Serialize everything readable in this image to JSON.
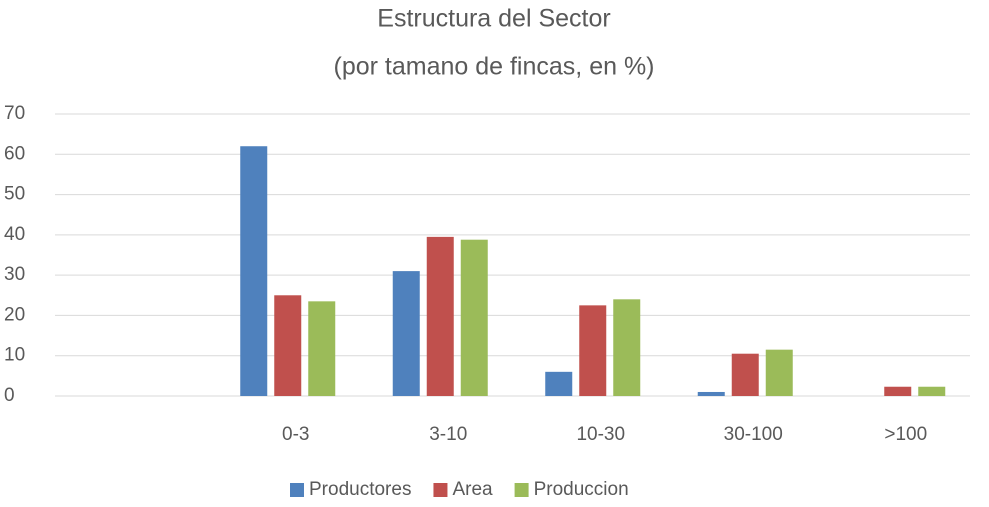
{
  "chart_data": {
    "type": "bar",
    "title": "Estructura del Sector",
    "subtitle": "(por tamano de fincas, en %)",
    "categories": [
      null,
      "0-3",
      "3-10",
      "10-30",
      "30-100",
      ">100"
    ],
    "series": [
      {
        "name": "Productores",
        "color": "#4f81bd",
        "values": [
          null,
          62,
          31,
          6,
          1,
          0
        ]
      },
      {
        "name": "Area",
        "color": "#c0504d",
        "values": [
          null,
          25,
          39.5,
          22.5,
          10.5,
          2.3
        ]
      },
      {
        "name": "Produccion",
        "color": "#9bbb59",
        "values": [
          null,
          23.5,
          38.8,
          24,
          11.5,
          2.3
        ]
      }
    ],
    "ylim": [
      0,
      70
    ],
    "yticks": [
      0,
      10,
      20,
      30,
      40,
      50,
      60,
      70
    ],
    "grid": true,
    "legend": "bottom"
  }
}
